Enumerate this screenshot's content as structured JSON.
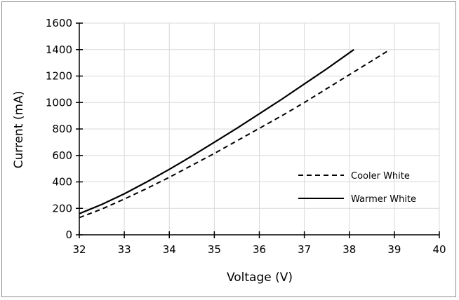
{
  "chart_data": {
    "type": "line",
    "xlabel": "Voltage (V)",
    "ylabel": "Current (mA)",
    "xlim": [
      32,
      40
    ],
    "ylim": [
      0,
      1600
    ],
    "x_ticks": [
      32,
      33,
      34,
      35,
      36,
      37,
      38,
      39,
      40
    ],
    "y_ticks": [
      0,
      200,
      400,
      600,
      800,
      1000,
      1200,
      1400,
      1600
    ],
    "grid": true,
    "legend_position": "right",
    "series": [
      {
        "name": "Cooler White",
        "style": "dashed",
        "color": "#000000",
        "x": [
          32.0,
          32.5,
          33.0,
          33.5,
          34.0,
          34.5,
          35.0,
          35.5,
          36.0,
          36.5,
          37.0,
          37.5,
          38.0,
          38.5,
          38.9
        ],
        "y": [
          130,
          195,
          270,
          350,
          435,
          525,
          615,
          710,
          805,
          900,
          1000,
          1105,
          1210,
          1315,
          1400
        ]
      },
      {
        "name": "Warmer White",
        "style": "solid",
        "color": "#000000",
        "x": [
          32.0,
          32.5,
          33.0,
          33.5,
          34.0,
          34.5,
          35.0,
          35.5,
          36.0,
          36.5,
          37.0,
          37.5,
          38.1
        ],
        "y": [
          160,
          230,
          310,
          400,
          495,
          595,
          700,
          805,
          915,
          1025,
          1140,
          1255,
          1400
        ]
      }
    ]
  }
}
